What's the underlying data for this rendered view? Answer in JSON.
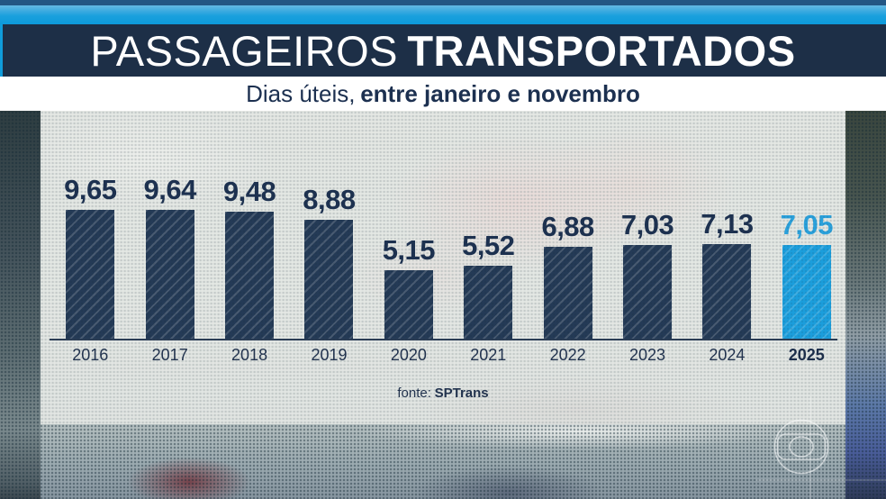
{
  "header": {
    "title": {
      "regular": "PASSAGEIROS",
      "bold": "TRANSPORTADOS"
    },
    "subtitle": {
      "regular": "Dias úteis,",
      "bold": "entre janeiro e novembro"
    }
  },
  "chart_data": {
    "type": "bar",
    "title": "PASSAGEIROS TRANSPORTADOS",
    "subtitle": "Dias úteis, entre janeiro e novembro",
    "categories": [
      "2016",
      "2017",
      "2018",
      "2019",
      "2020",
      "2021",
      "2022",
      "2023",
      "2024",
      "2025"
    ],
    "values": [
      9.65,
      9.64,
      9.48,
      8.88,
      5.15,
      5.52,
      6.88,
      7.03,
      7.13,
      7.05
    ],
    "value_labels": [
      "9,65",
      "9,64",
      "9,48",
      "8,88",
      "5,15",
      "5,52",
      "6,88",
      "7,03",
      "7,13",
      "7,05"
    ],
    "highlight_index": 9,
    "ylim": [
      0,
      10
    ],
    "grid": false,
    "legend": false,
    "xlabel": "",
    "ylabel": "",
    "bar_color": "#243a56",
    "highlight_color": "#1b9edc",
    "value_color": "#1d3150",
    "highlight_value_color": "#2ba2dc",
    "source": "fonte: SPTrans"
  },
  "footer": {
    "source_label": "fonte:",
    "source_value": "SPTrans"
  },
  "watermark": {
    "name": "globo-logo"
  },
  "colors": {
    "banner_navy": "#1d2f47",
    "strip_blue": "#0d9adb",
    "strip_dark_blue": "#235684",
    "panel_bg": "rgba(236,238,234,0.82)",
    "axis": "#2c3e57"
  }
}
